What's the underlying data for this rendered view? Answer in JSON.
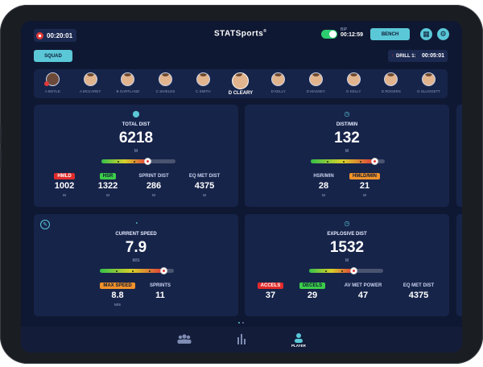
{
  "header": {
    "session_timer": "00:20:01",
    "logo": "STATSports",
    "bip_label": "BIP",
    "bip_time": "00:12:59",
    "bench_label": "BENCH",
    "calculator_icon": "calculator-icon",
    "settings_icon": "gear-icon"
  },
  "squad_button": "SQUAD",
  "drill": {
    "label": "DRILL 1:",
    "time": "00:05:01"
  },
  "players": [
    {
      "name": "A BOYLE"
    },
    {
      "name": "A MCCAREY"
    },
    {
      "name": "B GARTLAND"
    },
    {
      "name": "C SHIELDS"
    },
    {
      "name": "C SMITH"
    },
    {
      "name": "D CLEARY"
    },
    {
      "name": "D KELLY"
    },
    {
      "name": "D MASSEY"
    },
    {
      "name": "G KELLY"
    },
    {
      "name": "D ROGERS"
    },
    {
      "name": "G SLUGGETT"
    }
  ],
  "cards": {
    "total_dist": {
      "title": "TOTAL DIST",
      "value": "6218",
      "unit": "M",
      "gauge_level": 0.63,
      "metrics": [
        {
          "label": "HMLD",
          "value": "1002",
          "unit": "M"
        },
        {
          "label": "HSR",
          "value": "1322",
          "unit": "M"
        },
        {
          "label": "SPRINT DIST",
          "value": "286",
          "unit": "M"
        },
        {
          "label": "EQ MET DIST",
          "value": "4375",
          "unit": "M"
        }
      ]
    },
    "dist_min": {
      "title": "DIST/MIN",
      "value": "132",
      "unit": "M",
      "gauge_level": 0.86,
      "metrics": [
        {
          "label": "HSR/MIN",
          "value": "28",
          "unit": "M"
        },
        {
          "label": "HMLD/MIN",
          "value": "21",
          "unit": "M"
        }
      ]
    },
    "current_speed": {
      "title": "CURRENT SPEED",
      "value": "7.9",
      "unit": "M/S",
      "gauge_level": 0.86,
      "metrics": [
        {
          "label": "MAX SPEED",
          "value": "8.8",
          "unit": "M/S"
        },
        {
          "label": "SPRINTS",
          "value": "11",
          "unit": ""
        }
      ]
    },
    "explosive_dist": {
      "title": "EXPLOSIVE DIST",
      "value": "1532",
      "unit": "M",
      "gauge_level": 0.6,
      "metrics": [
        {
          "label": "ACCELS",
          "value": "37",
          "unit": ""
        },
        {
          "label": "DECELS",
          "value": "29",
          "unit": ""
        },
        {
          "label": "AV MET POWER",
          "value": "47",
          "unit": ""
        },
        {
          "label": "EQ MET DIST",
          "value": "4375",
          "unit": ""
        }
      ]
    }
  },
  "nav": {
    "player_label": "PLAYER"
  }
}
